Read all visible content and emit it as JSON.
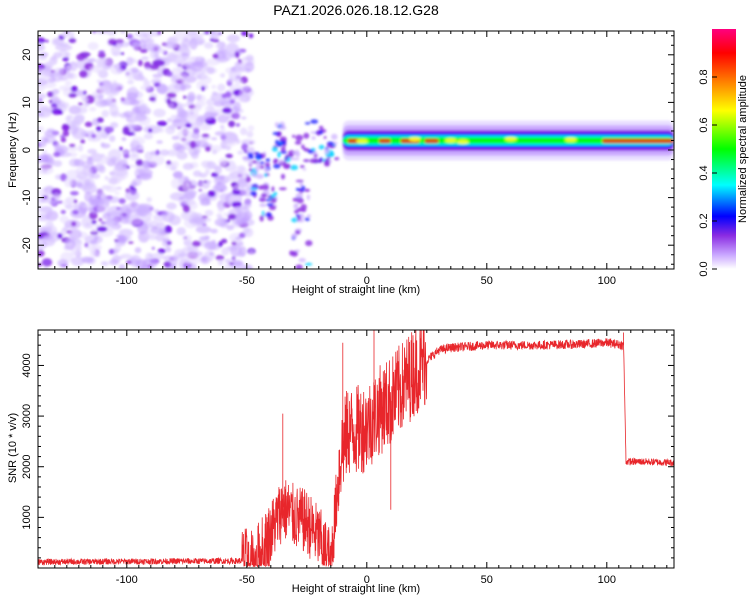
{
  "title": "PAZ1.2026.026.18.12.G28",
  "spectrogram": {
    "type": "heatmap",
    "xlabel": "Height of straight line (km)",
    "ylabel": "Frequency (Hz)",
    "xlim": [
      -137,
      128
    ],
    "ylim": [
      -25,
      25
    ],
    "xticks": [
      -100,
      -50,
      0,
      50,
      100
    ],
    "xtick_labels": [
      "-100",
      "-50",
      "0",
      "50",
      "100"
    ],
    "yticks": [
      -20,
      -10,
      0,
      10,
      20
    ],
    "ytick_labels": [
      "-20",
      "-10",
      "0",
      "10",
      "20"
    ],
    "signal_track": {
      "x_start": -10,
      "x_end": 128,
      "frequency_hz": 2
    },
    "noise_region": {
      "x_start": -137,
      "x_end": -50
    },
    "colorbar": {
      "label": "Normalized spectral amplitude",
      "range": [
        0,
        1
      ],
      "ticks": [
        0.0,
        0.2,
        0.4,
        0.6,
        0.8
      ],
      "tick_labels": [
        "0.0",
        "0.2",
        "0.4",
        "0.6",
        "0.8"
      ],
      "colors": [
        "#ffffff",
        "#c9a6ff",
        "#8a2be2",
        "#0000ff",
        "#00ffff",
        "#00ff00",
        "#ffff00",
        "#ff8000",
        "#ff0000",
        "#ff007f"
      ]
    }
  },
  "snr": {
    "type": "line",
    "xlabel": "Height of straight line (km)",
    "ylabel": "SNR (10 * v/v)",
    "xlim": [
      -137,
      128
    ],
    "ylim": [
      0,
      4700
    ],
    "xticks": [
      -100,
      -50,
      0,
      50,
      100
    ],
    "xtick_labels": [
      "-100",
      "-50",
      "0",
      "50",
      "100"
    ],
    "yticks": [
      1000,
      2000,
      3000,
      4000
    ],
    "ytick_labels": [
      "1000",
      "2000",
      "3000",
      "4000"
    ],
    "line_color": "#e8262b",
    "envelope": {
      "x": [
        -137,
        -52,
        -46,
        -40,
        -35,
        -30,
        -25,
        -20,
        -15,
        -11,
        -8,
        -5,
        0,
        5,
        10,
        15,
        20,
        25,
        30,
        35,
        50,
        70,
        90,
        100,
        107,
        108,
        115,
        128
      ],
      "y": [
        120,
        140,
        200,
        700,
        1200,
        1000,
        900,
        600,
        130,
        2200,
        2700,
        2700,
        2800,
        3100,
        3300,
        3600,
        3900,
        4100,
        4300,
        4350,
        4400,
        4400,
        4420,
        4450,
        4400,
        2100,
        2100,
        2080
      ]
    },
    "spikes": [
      {
        "x": -35,
        "y": 3050
      },
      {
        "x": -10,
        "y": 4450
      },
      {
        "x": 3,
        "y": 4700
      },
      {
        "x": 10,
        "y": 1150
      },
      {
        "x": 107,
        "y": 4650
      }
    ]
  },
  "colors": {
    "axis": "#000000",
    "background": "#ffffff"
  }
}
